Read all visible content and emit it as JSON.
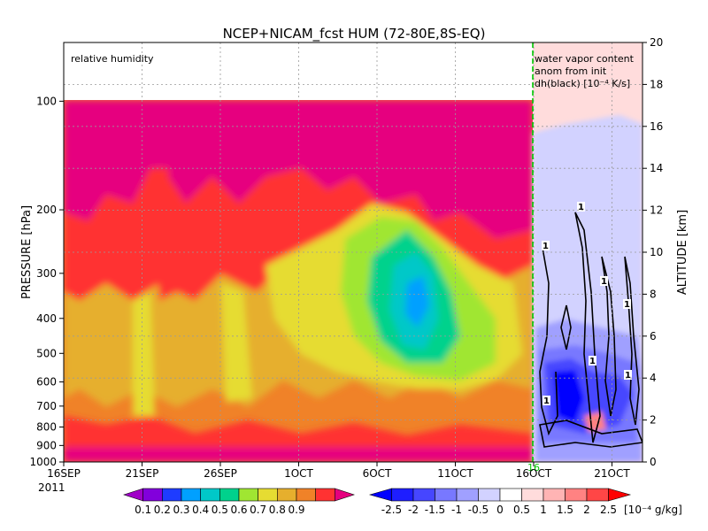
{
  "chart_data": {
    "type": "heatmap",
    "title": "NCEP+NICAM_fcst HUM (72-80E,8S-EQ)",
    "left_panel_label": "relative humidity",
    "right_panel_label": [
      "water vapor content",
      "anom from init",
      "dh(black) [10⁻⁴ K/s]"
    ],
    "ylabel_left": "PRESSURE [hPa]",
    "ylabel_right": "ALTITUDE [km]",
    "x_ticks": [
      "16SEP",
      "21SEP",
      "26SEP",
      "1OCT",
      "6OCT",
      "11OCT",
      "16OCT",
      "21OCT"
    ],
    "x_year": "2011",
    "forecast_marker_label": "16",
    "pressure_ticks": [
      100,
      200,
      300,
      400,
      500,
      600,
      700,
      800,
      900,
      1000
    ],
    "pressure_range": [
      1000,
      100
    ],
    "altitude_ticks": [
      0,
      2,
      4,
      6,
      8,
      10,
      12,
      14,
      16,
      18,
      20
    ],
    "altitude_range": [
      0,
      20
    ],
    "grid": true,
    "contour_label": "1",
    "rh_levels": [
      "0.1",
      "0.2",
      "0.3",
      "0.4",
      "0.5",
      "0.6",
      "0.7",
      "0.8",
      "0.9"
    ],
    "rh_colors": [
      "#a000c8",
      "#8200dc",
      "#1e3cff",
      "#00a0ff",
      "#00c8c8",
      "#00d28c",
      "#a0e632",
      "#e6dc32",
      "#e6af2d",
      "#f08228",
      "#ff3232",
      "#e6007f"
    ],
    "anom_levels": [
      "-2.5",
      "-2",
      "-1.5",
      "-1",
      "-0.5",
      "0",
      "0.5",
      "1",
      "1.5",
      "2",
      "2.5"
    ],
    "anom_unit": "[10⁻⁴ g/kg]",
    "anom_colors": [
      "#0000ff",
      "#1e1eff",
      "#4646ff",
      "#7878ff",
      "#a0a0ff",
      "#d2d2ff",
      "#ffffff",
      "#ffdcdc",
      "#ffb4b4",
      "#ff8282",
      "#ff4646",
      "#ff0000"
    ],
    "rh_time_series": [
      {
        "date": "2011-09-16",
        "rh_mid": 0.8
      },
      {
        "date": "2011-09-21",
        "rh_mid": 0.8
      },
      {
        "date": "2011-09-26",
        "rh_mid": 0.75
      },
      {
        "date": "2011-10-01",
        "rh_mid": 0.65
      },
      {
        "date": "2011-10-06",
        "rh_mid": 0.55
      },
      {
        "date": "2011-10-11",
        "rh_mid": 0.6
      },
      {
        "date": "2011-10-16",
        "rh_mid": 0.7
      }
    ]
  }
}
